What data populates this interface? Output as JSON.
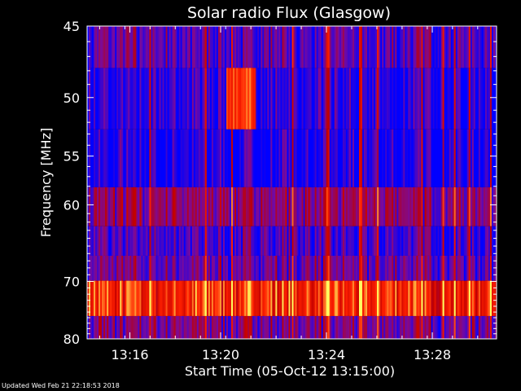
{
  "chart_data": {
    "type": "heatmap",
    "title": "Solar radio Flux (Glasgow)",
    "xlabel": "Start Time (05-Oct-12 13:15:00)",
    "ylabel": "Frequency [MHz]",
    "x_tick_labels": [
      "13:16",
      "13:20",
      "13:24",
      "13:28"
    ],
    "x_tick_minutes": [
      13.27,
      13.33,
      13.4,
      13.47
    ],
    "xlim_hours": [
      13.2417,
      13.5125
    ],
    "y_tick_labels": [
      "45",
      "50",
      "55",
      "60",
      "70",
      "80"
    ],
    "y_ticks": [
      45,
      50,
      55,
      60,
      70,
      80
    ],
    "ylim": [
      45,
      80
    ],
    "y_scale": "reciprocal",
    "grid": false,
    "colormap": [
      "#0000ff",
      "#7a0a9c",
      "#c00000",
      "#ff2000",
      "#ffff60"
    ],
    "frequency_bands": [
      {
        "f0": 45,
        "f1": 47.8,
        "level": 0.18
      },
      {
        "f0": 47.8,
        "f1": 52.6,
        "level": 0.08
      },
      {
        "f0": 52.6,
        "f1": 58.1,
        "level": 0.05
      },
      {
        "f0": 58.1,
        "f1": 62.5,
        "level": 0.32
      },
      {
        "f0": 62.5,
        "f1": 66.3,
        "level": 0.15
      },
      {
        "f0": 66.3,
        "f1": 69.9,
        "level": 0.22
      },
      {
        "f0": 69.9,
        "f1": 75.7,
        "level": 0.72
      },
      {
        "f0": 75.7,
        "f1": 80,
        "level": 0.28
      }
    ],
    "burst": {
      "t0": 13.3333,
      "t1": 13.3528,
      "f0": 47.8,
      "f1": 52.6,
      "level": 0.78
    }
  },
  "footer": {
    "text": "Updated Wed Feb 21 22:18:53 2018"
  }
}
